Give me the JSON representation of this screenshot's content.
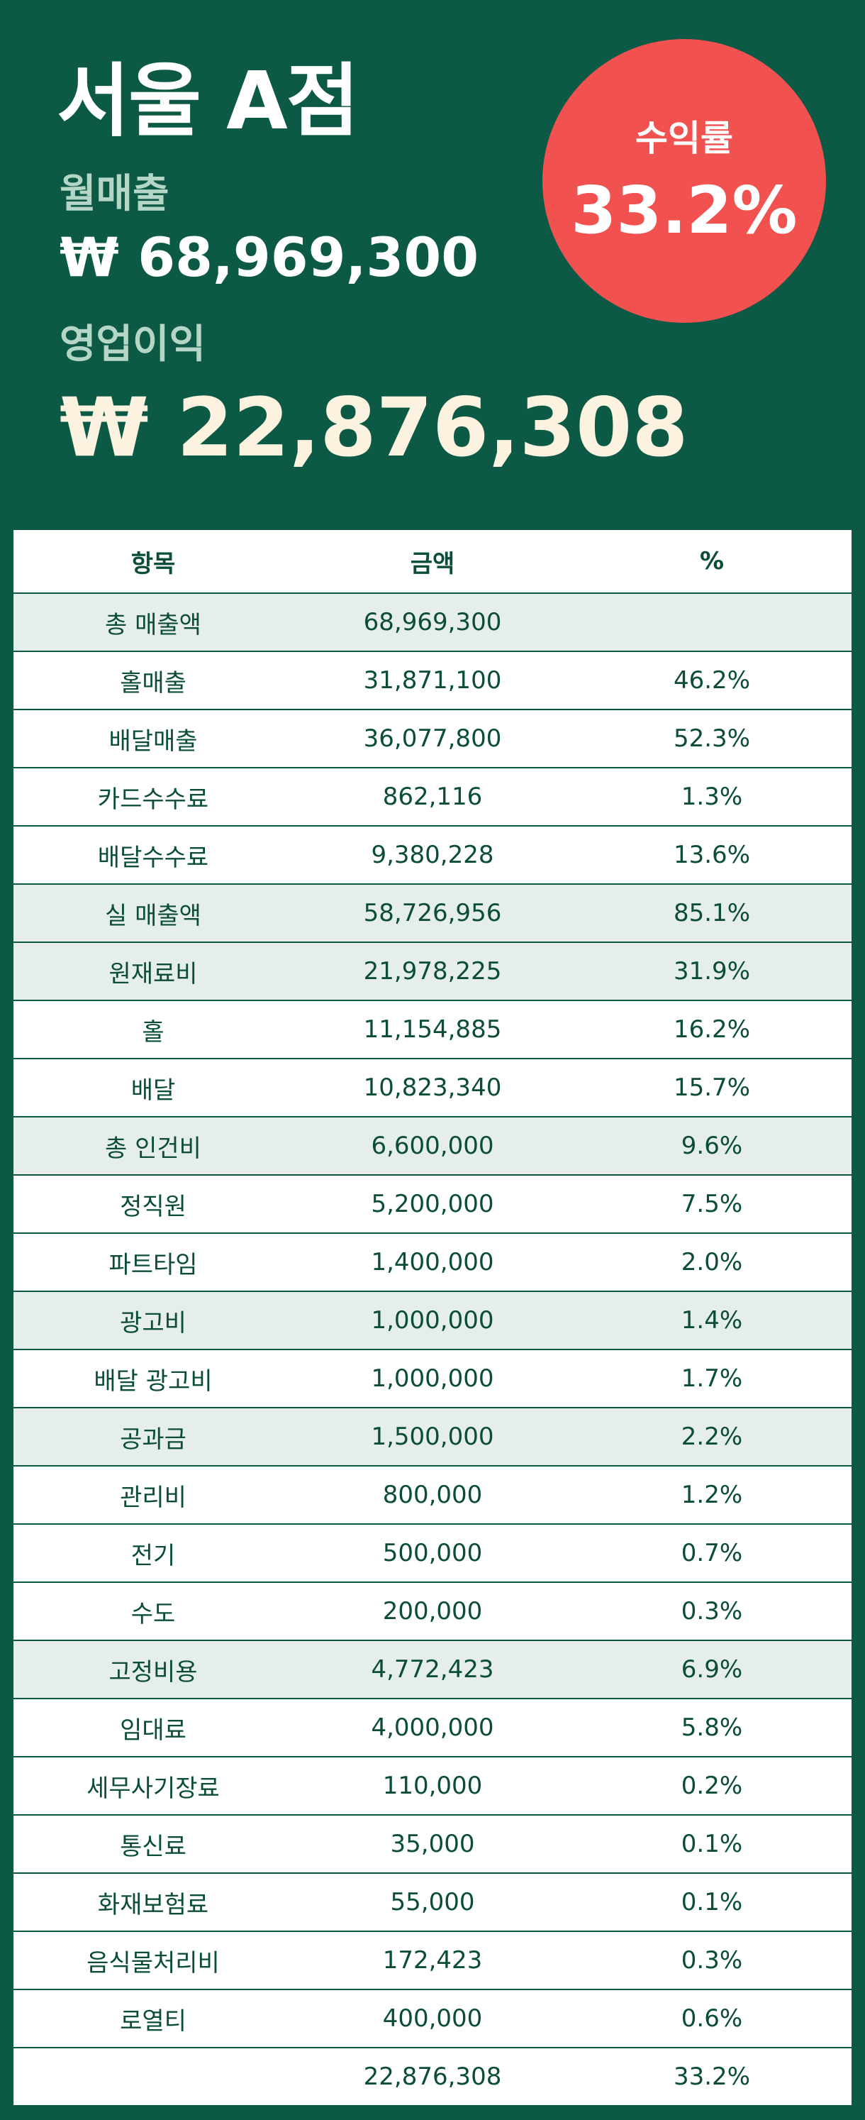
{
  "header": {
    "title": "서울 A점",
    "sales_label": "월매출",
    "sales_value": "₩ 68,969,300",
    "profit_label": "영업이익",
    "profit_value": "₩ 22,876,308",
    "badge_label": "수익률",
    "badge_value": "33.2%"
  },
  "table": {
    "columns": [
      "항목",
      "금액",
      "%"
    ],
    "rows": [
      [
        "총 매출액",
        "68,969,300",
        null
      ],
      [
        "홀매출",
        "31,871,100",
        "46.2%"
      ],
      [
        "배달매출",
        "36,077,800",
        "52.3%"
      ],
      [
        "카드수수료",
        "862,116",
        "1.3%"
      ],
      [
        "배달수수료",
        "9,380,228",
        "13.6%"
      ],
      [
        "실 매출액",
        "58,726,956",
        "85.1%"
      ],
      [
        "원재료비",
        "21,978,225",
        "31.9%"
      ],
      [
        "홀",
        "11,154,885",
        "16.2%"
      ],
      [
        "배달",
        "10,823,340",
        "15.7%"
      ],
      [
        "총 인건비",
        "6,600,000",
        "9.6%"
      ],
      [
        "정직원",
        "5,200,000",
        "7.5%"
      ],
      [
        "파트타임",
        "1,400,000",
        "2.0%"
      ],
      [
        "광고비",
        "1,000,000",
        "1.4%"
      ],
      [
        "배달 광고비",
        "1,000,000",
        "1.7%"
      ],
      [
        "공과금",
        "1,500,000",
        "2.2%"
      ],
      [
        "관리비",
        "800,000",
        "1.2%"
      ],
      [
        "전기",
        "500,000",
        "0.7%"
      ],
      [
        "수도",
        "200,000",
        "0.3%"
      ],
      [
        "고정비용",
        "4,772,423",
        "6.9%"
      ],
      [
        "임대료",
        "4,000,000",
        "5.8%"
      ],
      [
        "세무사기장료",
        "110,000",
        "0.2%"
      ],
      [
        "통신료",
        "35,000",
        "0.1%"
      ],
      [
        "화재보험료",
        "55,000",
        "0.1%"
      ],
      [
        "음식물처리비",
        "172,423",
        "0.3%"
      ],
      [
        "로열티",
        "400,000",
        "0.6%"
      ],
      [
        null,
        "22,876,308",
        "33.2%"
      ]
    ]
  }
}
